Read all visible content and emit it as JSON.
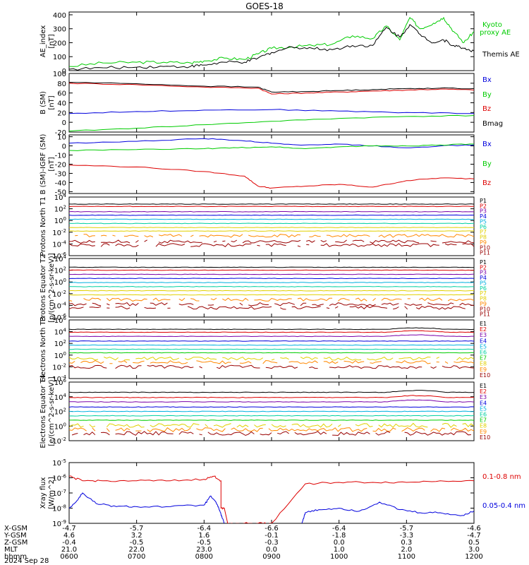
{
  "title": "GOES-18",
  "colors": {
    "black": "#000000",
    "red": "#dd0000",
    "green": "#00cc00",
    "blue": "#0000dd",
    "purple": "#7a00a8",
    "cyan": "#00b0e0",
    "teal": "#00d0a0",
    "yellow": "#e0d000",
    "orange": "#ff8800",
    "maroon": "#990000",
    "lightgreen": "#40e040"
  },
  "time_axis": {
    "xlim": [
      "0600",
      "1200"
    ],
    "ticks": [
      "0600",
      "0700",
      "0800",
      "0900",
      "1000",
      "1100",
      "1200"
    ]
  },
  "ephemeris": {
    "rows": [
      {
        "label": "X-GSM",
        "values": [
          "-4.7",
          "-5.7",
          "-6.4",
          "-6.6",
          "-6.4",
          "-5.7",
          "-4.6"
        ]
      },
      {
        "label": "Y-GSM",
        "values": [
          "4.6",
          "3.2",
          "1.6",
          "-0.1",
          "-1.8",
          "-3.3",
          "-4.7"
        ]
      },
      {
        "label": "Z-GSM",
        "values": [
          "-0.4",
          "-0.5",
          "-0.5",
          "-0.3",
          "0.0",
          "0.3",
          "0.5"
        ]
      },
      {
        "label": "MLT",
        "values": [
          "21.0",
          "22.0",
          "23.0",
          "0.0",
          "1.0",
          "2.0",
          "3.0"
        ]
      },
      {
        "label": "hhmm",
        "values": [
          "0600",
          "0700",
          "0800",
          "0900",
          "1000",
          "1100",
          "1200"
        ]
      }
    ],
    "date": "2024 Sep 28"
  },
  "chart_data": [
    {
      "type": "line",
      "ylabel": "AE_index [nT]",
      "ylim": [
        0,
        420
      ],
      "yticks": [
        "0",
        "100",
        "200",
        "300",
        "400"
      ],
      "series": [
        {
          "name": "Kyoto proxy AE",
          "color": "green",
          "x": [
            6.0,
            6.5,
            7.0,
            7.4,
            7.8,
            8.0,
            8.3,
            8.6,
            8.8,
            9.0,
            9.3,
            9.6,
            9.9,
            10.2,
            10.5,
            10.7,
            10.9,
            11.05,
            11.2,
            11.4,
            11.55,
            11.7,
            11.85,
            12.0
          ],
          "y": [
            30,
            55,
            60,
            60,
            55,
            70,
            90,
            80,
            120,
            160,
            170,
            180,
            190,
            250,
            230,
            320,
            220,
            380,
            300,
            340,
            380,
            280,
            200,
            280
          ]
        },
        {
          "name": "Themis AE",
          "color": "black",
          "x": [
            6.0,
            6.5,
            7.0,
            7.4,
            7.8,
            8.0,
            8.3,
            8.6,
            8.8,
            9.0,
            9.3,
            9.6,
            9.9,
            10.2,
            10.5,
            10.7,
            10.9,
            11.05,
            11.2,
            11.4,
            11.55,
            11.7,
            11.85,
            12.0
          ],
          "y": [
            10,
            20,
            25,
            30,
            30,
            40,
            60,
            60,
            90,
            130,
            170,
            160,
            150,
            180,
            180,
            310,
            240,
            330,
            260,
            200,
            220,
            180,
            160,
            140
          ]
        }
      ],
      "labels": [
        {
          "text": "Kyoto",
          "color": "green"
        },
        {
          "text": "proxy AE",
          "color": "green"
        },
        {
          "text": "Themis AE",
          "color": "black"
        }
      ]
    },
    {
      "type": "line",
      "ylabel": "B (SM) [nT]",
      "ylim": [
        -20,
        100
      ],
      "yticks": [
        "-20",
        "0",
        "20",
        "40",
        "60",
        "80",
        "100"
      ],
      "series": [
        {
          "name": "Bx",
          "color": "blue",
          "x": [
            6,
            7,
            8,
            9,
            10,
            11,
            12
          ],
          "y": [
            18,
            22,
            25,
            26,
            23,
            20,
            18
          ]
        },
        {
          "name": "By",
          "color": "green",
          "x": [
            6,
            7,
            8,
            9,
            10,
            11,
            12
          ],
          "y": [
            -18,
            -12,
            -5,
            2,
            8,
            12,
            14
          ]
        },
        {
          "name": "Bz",
          "color": "red",
          "x": [
            6,
            7,
            8,
            8.8,
            9.0,
            9.5,
            10,
            10.5,
            11,
            11.5,
            12
          ],
          "y": [
            80,
            77,
            72,
            70,
            58,
            60,
            62,
            64,
            66,
            68,
            66
          ]
        },
        {
          "name": "Bmag",
          "color": "black",
          "x": [
            6,
            7,
            8,
            8.8,
            9.0,
            9.5,
            10,
            10.5,
            11,
            11.5,
            12
          ],
          "y": [
            82,
            79,
            74,
            72,
            62,
            63,
            65,
            67,
            69,
            70,
            69
          ]
        }
      ],
      "labels": [
        {
          "text": "Bx",
          "color": "blue"
        },
        {
          "text": "By",
          "color": "green"
        },
        {
          "text": "Bz",
          "color": "red"
        },
        {
          "text": "Bmag",
          "color": "black"
        }
      ]
    },
    {
      "type": "line",
      "ylabel": "B (SM)-IGRF (SM) [nT]",
      "ylim": [
        -52,
        12
      ],
      "yticks": [
        "-50",
        "-40",
        "-30",
        "-20",
        "-10",
        "0",
        "10"
      ],
      "series": [
        {
          "name": "Bx",
          "color": "blue",
          "x": [
            6,
            7,
            8,
            8.5,
            9,
            9.5,
            10,
            10.5,
            11,
            11.5,
            12
          ],
          "y": [
            3,
            5,
            8,
            6,
            3,
            1,
            2,
            0,
            -2,
            0,
            1
          ]
        },
        {
          "name": "By",
          "color": "green",
          "x": [
            6,
            7,
            8,
            8.5,
            9,
            9.5,
            10,
            10.5,
            11,
            11.5,
            12
          ],
          "y": [
            -5,
            -4,
            -3,
            -2,
            -1,
            -3,
            -1,
            0,
            0,
            1,
            2
          ]
        },
        {
          "name": "Bz",
          "color": "red",
          "x": [
            6,
            7,
            8,
            8.6,
            8.8,
            9.0,
            9.5,
            10,
            10.5,
            11,
            11.5,
            12
          ],
          "y": [
            -21,
            -23,
            -28,
            -33,
            -44,
            -46,
            -44,
            -42,
            -45,
            -38,
            -35,
            -36
          ]
        }
      ],
      "labels": [
        {
          "text": "Bx",
          "color": "blue"
        },
        {
          "text": "By",
          "color": "green"
        },
        {
          "text": "Bz",
          "color": "red"
        }
      ]
    },
    {
      "type": "line",
      "ylabel": "Protons North T1",
      "yscale": "log",
      "ylim": [
        -6,
        4
      ],
      "yticks": [
        "10^4",
        "10^2",
        "10^0",
        "10^-2",
        "10^-4",
        "10^-6"
      ],
      "channels": [
        "P1",
        "P2",
        "P3",
        "P4",
        "P5",
        "P6",
        "P7",
        "P8",
        "P9",
        "P10",
        "P11"
      ],
      "channel_colors": [
        "black",
        "red",
        "purple",
        "blue",
        "cyan",
        "teal",
        "yellow",
        "yellow",
        "orange",
        "maroon",
        "maroon"
      ],
      "channel_levels": [
        2.8,
        2.4,
        1.5,
        0.9,
        0.2,
        -0.5,
        -1.2,
        -1.8,
        -2.6,
        -3.6,
        -4.2
      ]
    },
    {
      "type": "line",
      "ylabel": "Protons Equator T2 [p/(cm^2-s-sr-keV)]",
      "yscale": "log",
      "ylim": [
        -6,
        4
      ],
      "yticks": [
        "10^4",
        "10^2",
        "10^0",
        "10^-2",
        "10^-4",
        "10^-6"
      ],
      "channels": [
        "P1",
        "P2",
        "P3",
        "P4",
        "P5",
        "P6",
        "P7",
        "P8",
        "P9",
        "P10",
        "P11"
      ],
      "channel_colors": [
        "black",
        "red",
        "purple",
        "blue",
        "cyan",
        "teal",
        "yellow",
        "yellow",
        "orange",
        "maroon",
        "maroon"
      ],
      "channel_levels": [
        2.5,
        2.0,
        1.3,
        0.6,
        -0.1,
        -0.8,
        -1.5,
        -2.2,
        -3.0,
        -3.8,
        -4.4
      ]
    },
    {
      "type": "line",
      "ylabel": "Electrons North T3",
      "yscale": "log",
      "ylim": [
        -4,
        6
      ],
      "yticks": [
        "10^6",
        "10^4",
        "10^2",
        "10^0",
        "10^-2",
        "10^-4"
      ],
      "channels": [
        "E1",
        "E2",
        "E3",
        "E4",
        "E5",
        "E6",
        "E7",
        "E8",
        "E9",
        "E10"
      ],
      "channel_colors": [
        "black",
        "red",
        "purple",
        "blue",
        "cyan",
        "teal",
        "green",
        "yellow",
        "orange",
        "maroon"
      ],
      "channel_levels": [
        4.4,
        3.9,
        3.2,
        2.4,
        1.7,
        1.0,
        0.4,
        -0.6,
        -1.2,
        -2.0
      ]
    },
    {
      "type": "line",
      "ylabel": "Electrons Equator T4 [e/(cm^2-s-sr-keV)]",
      "yscale": "log",
      "ylim": [
        -2,
        6
      ],
      "yticks": [
        "10^6",
        "10^4",
        "10^2",
        "10^0",
        "10^-2"
      ],
      "channels": [
        "E1",
        "E2",
        "E3",
        "E4",
        "E5",
        "E6",
        "E7",
        "E8",
        "E9",
        "E10"
      ],
      "channel_colors": [
        "black",
        "red",
        "purple",
        "blue",
        "cyan",
        "teal",
        "green",
        "yellow",
        "orange",
        "maroon"
      ],
      "channel_levels": [
        4.6,
        3.9,
        3.3,
        2.6,
        2.0,
        1.4,
        0.8,
        0.1,
        -0.5,
        -1.0
      ]
    },
    {
      "type": "line",
      "ylabel": "Xray flux [W/m^2]",
      "yscale": "log",
      "ylim": [
        -9,
        -5
      ],
      "yticks": [
        "10^-5",
        "10^-6",
        "10^-7",
        "10^-8",
        "10^-9"
      ],
      "series": [
        {
          "name": "0.1-0.8 nm",
          "color": "red",
          "x": [
            6.0,
            6.2,
            6.5,
            7.0,
            7.5,
            8.0,
            8.15,
            8.25,
            8.25,
            8.3,
            8.35,
            8.6,
            8.6,
            8.8,
            9.0,
            9.5,
            10.0,
            10.5,
            11.0,
            11.5,
            12.0
          ],
          "y": [
            -5.9,
            -6.2,
            -6.2,
            -6.2,
            -6.2,
            -6.1,
            -5.9,
            -6.2,
            -8.0,
            -8.0,
            -9.0,
            -9.0,
            -9.0,
            -9.0,
            -9.0,
            -6.4,
            -6.3,
            -6.3,
            -6.3,
            -6.2,
            -6.2
          ]
        },
        {
          "name": "0.05-0.4 nm",
          "color": "blue",
          "x": [
            6.0,
            6.1,
            6.2,
            6.4,
            6.7,
            7.0,
            7.5,
            8.0,
            8.1,
            8.2,
            8.25,
            8.3
          ],
          "y": [
            -8.0,
            -7.6,
            -7.0,
            -7.7,
            -7.9,
            -7.9,
            -7.9,
            -7.8,
            -7.2,
            -7.8,
            -8.4,
            -9.0
          ]
        },
        {
          "name": "0.05-0.4 nm (late)",
          "color": "blue",
          "x": [
            9.45,
            9.5,
            9.7,
            10.0,
            10.3,
            10.6,
            10.9,
            11.2,
            11.5,
            11.8,
            12.0
          ],
          "y": [
            -9.0,
            -8.3,
            -8.1,
            -8.0,
            -8.2,
            -7.6,
            -8.1,
            -8.3,
            -8.3,
            -8.5,
            -8.2
          ]
        }
      ],
      "labels": [
        {
          "text": "0.1-0.8 nm",
          "color": "red"
        },
        {
          "text": "0.05-0.4 nm",
          "color": "blue"
        }
      ]
    }
  ]
}
